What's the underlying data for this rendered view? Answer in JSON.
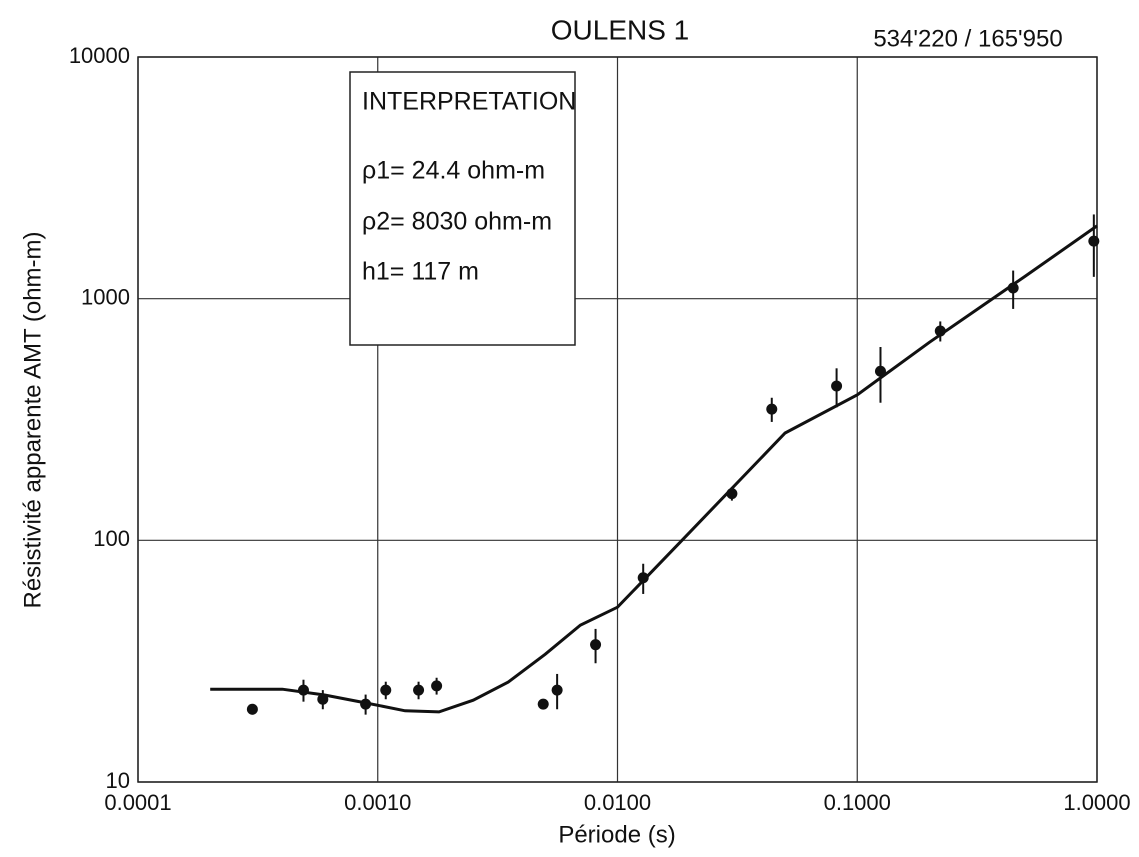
{
  "chart_data": {
    "type": "scatter",
    "title": "OULENS 1",
    "subtitle": "534'220 / 165'950",
    "xlabel": "Période (s)",
    "ylabel": "Résistivité apparente  AMT (ohm-m)",
    "annotation": {
      "heading": "INTERPRETATION",
      "lines": [
        "ρ1= 24.4 ohm-m",
        "ρ2= 8030 ohm-m",
        "h1= 117 m"
      ]
    },
    "xscale": "log",
    "yscale": "log",
    "grid": true,
    "color": "#111111",
    "xlim": [
      0.0001,
      1
    ],
    "ylim": [
      10,
      10000
    ],
    "xticks": [
      {
        "value": 0.0001,
        "label": "0.0001"
      },
      {
        "value": 0.001,
        "label": "0.0010"
      },
      {
        "value": 0.01,
        "label": "0.0100"
      },
      {
        "value": 0.1,
        "label": "0.1000"
      },
      {
        "value": 1,
        "label": "1.0000"
      }
    ],
    "yticks": [
      10,
      100,
      1000,
      10000
    ],
    "points": {
      "x": [
        0.0003,
        0.00049,
        0.00059,
        0.00089,
        0.00108,
        0.00148,
        0.00176,
        0.0049,
        0.0056,
        0.0081,
        0.0128,
        0.03,
        0.044,
        0.082,
        0.125,
        0.222,
        0.447,
        0.97
      ],
      "y": [
        20,
        24,
        22,
        21,
        24,
        24,
        25,
        21,
        24,
        37,
        70,
        156,
        349,
        435,
        501,
        735,
        1107,
        1731
      ],
      "errors": [
        1,
        2.5,
        2,
        2,
        2,
        2,
        2,
        1,
        4,
        6,
        10,
        10,
        40,
        80,
        130,
        70,
        200,
        500
      ]
    },
    "fit": {
      "x": [
        0.0002,
        0.0004,
        0.0006,
        0.0009,
        0.0013,
        0.0018,
        0.0025,
        0.0035,
        0.005,
        0.007,
        0.01,
        0.02,
        0.05,
        0.1,
        0.2,
        0.5,
        1
      ],
      "y": [
        24.2,
        24.2,
        22.9,
        21.2,
        19.7,
        19.5,
        21.8,
        25.9,
        33.8,
        44.6,
        52.9,
        108,
        278,
        400,
        660,
        1235,
        2000
      ]
    }
  }
}
